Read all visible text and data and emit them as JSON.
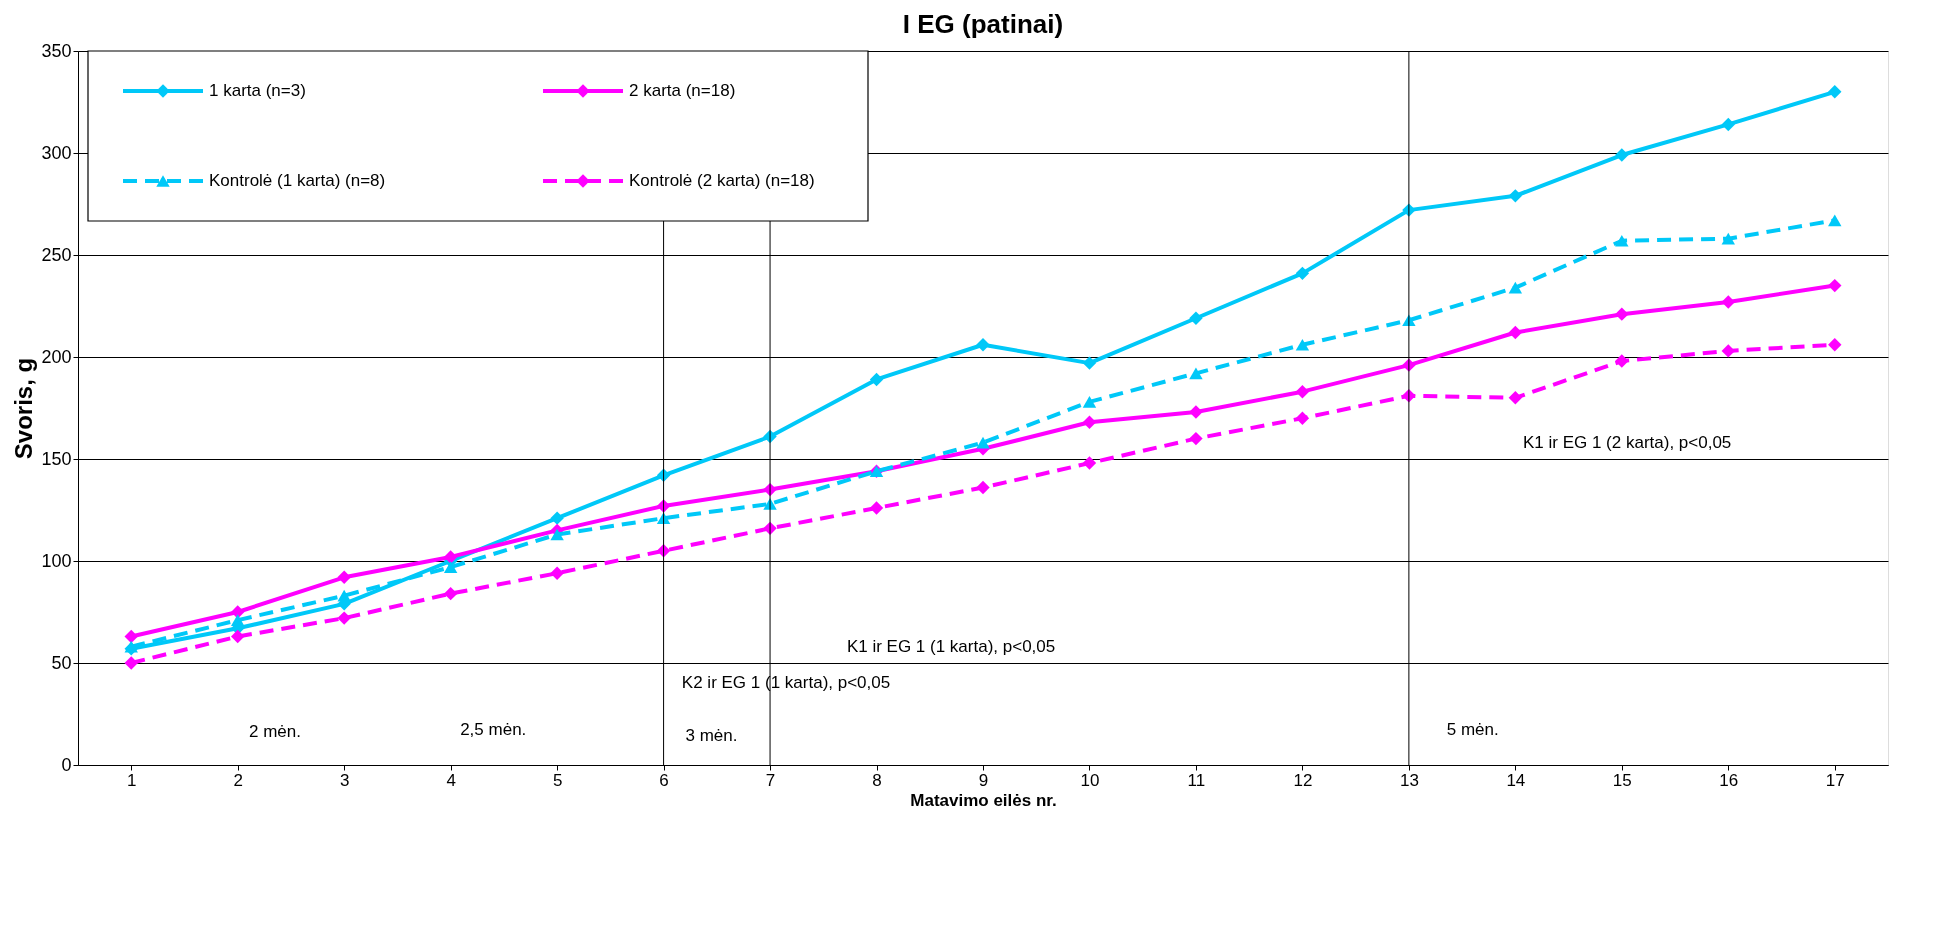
{
  "chart_data": {
    "type": "line",
    "title": "I EG (patinai)",
    "xlabel": "Matavimo eilės nr.",
    "ylabel": "Svoris, g",
    "x": [
      1,
      2,
      3,
      4,
      5,
      6,
      7,
      8,
      9,
      10,
      11,
      12,
      13,
      14,
      15,
      16,
      17
    ],
    "xlim": [
      0.5,
      17.5
    ],
    "xticks": [
      1,
      2,
      3,
      4,
      5,
      6,
      7,
      8,
      9,
      10,
      11,
      12,
      13,
      14,
      15,
      16,
      17
    ],
    "ylim": [
      0,
      350
    ],
    "yticks": [
      0,
      50,
      100,
      150,
      200,
      250,
      300,
      350
    ],
    "grid": "y",
    "legend": "top left",
    "series": [
      {
        "name": "1 karta (n=3)",
        "color": "#00c8f8",
        "marker": "diamond",
        "line_style": "solid",
        "values": [
          57,
          67,
          79,
          100,
          121,
          142,
          161,
          189,
          206,
          197,
          219,
          241,
          272,
          279,
          299,
          314,
          330
        ]
      },
      {
        "name": "2 karta (n=18)",
        "color": "#ff00ff",
        "marker": "diamond",
        "line_style": "solid",
        "values": [
          63,
          75,
          92,
          102,
          115,
          127,
          135,
          144,
          155,
          168,
          173,
          183,
          196,
          212,
          221,
          227,
          235
        ]
      },
      {
        "name": "Kontrolė (1 karta) (n=8)",
        "color": "#00c8f8",
        "marker": "triangle",
        "line_style": "dashed",
        "values": [
          58,
          71,
          83,
          97,
          113,
          121,
          128,
          144,
          158,
          178,
          192,
          206,
          218,
          234,
          257,
          258,
          267
        ]
      },
      {
        "name": "Kontrolė (2 karta) (n=18)",
        "color": "#ff00ff",
        "marker": "diamond",
        "line_style": "dashed",
        "values": [
          50,
          63,
          72,
          84,
          94,
          105,
          116,
          126,
          136,
          148,
          160,
          170,
          181,
          180,
          198,
          203,
          206
        ]
      }
    ],
    "ref_lines": [
      {
        "axis": "x",
        "value": 6,
        "color": "#000000"
      },
      {
        "axis": "x",
        "value": 7,
        "color": "#000000"
      },
      {
        "axis": "x",
        "value": 13,
        "color": "#000000"
      }
    ],
    "annotations": [
      "K1 ir EG 1 (1 karta), p<0,05",
      "K2 ir EG 1 (1 karta), p<0,05",
      "K1 ir EG 1 (2 karta), p<0,05",
      "2 mėn.",
      "2,5 mėn.",
      "3 mėn.",
      "5 mėn."
    ]
  }
}
